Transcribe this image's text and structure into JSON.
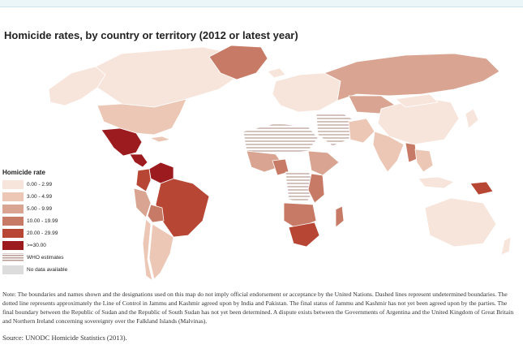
{
  "title": "Homicide rates, by country or territory (2012 or latest year)",
  "legend": {
    "title": "Homicide rate",
    "items": [
      {
        "label": "0.00 - 2.99",
        "color": "#f7e5dc"
      },
      {
        "label": "3.00 - 4.99",
        "color": "#ecc7b5"
      },
      {
        "label": "5.00 - 9.99",
        "color": "#d9a592"
      },
      {
        "label": "10.00 - 19.99",
        "color": "#c77b66"
      },
      {
        "label": "20.00 - 29.99",
        "color": "#b74634"
      },
      {
        "label": ">=30.00",
        "color": "#9c1b1e"
      },
      {
        "label": "WHO estimates",
        "color": "hatch"
      },
      {
        "label": "No data available",
        "color": "#dcdcdc"
      }
    ]
  },
  "note": "Note: The boundaries and names shown and the designations used on this map do not imply official endorsement or acceptance by the United Nations. Dashed lines represent undetermined boundaries. The dotted line represents approximately the Line of Control in Jammu and Kashmir agreed upon by India and Pakistan. The final status of Jammu and Kashmir has not yet been agreed upon by the parties. The final boundary between the Republic of Sudan and the Republic of South Sudan has not yet been determined. A dispute exists between the Governments of Argentina and the United Kingdom of Great Britain and Northern Ireland concerning sovereignty over the Falkland Islands (Malvinas).",
  "source": "Source: UNODC Homicide Statistics (2013)."
}
